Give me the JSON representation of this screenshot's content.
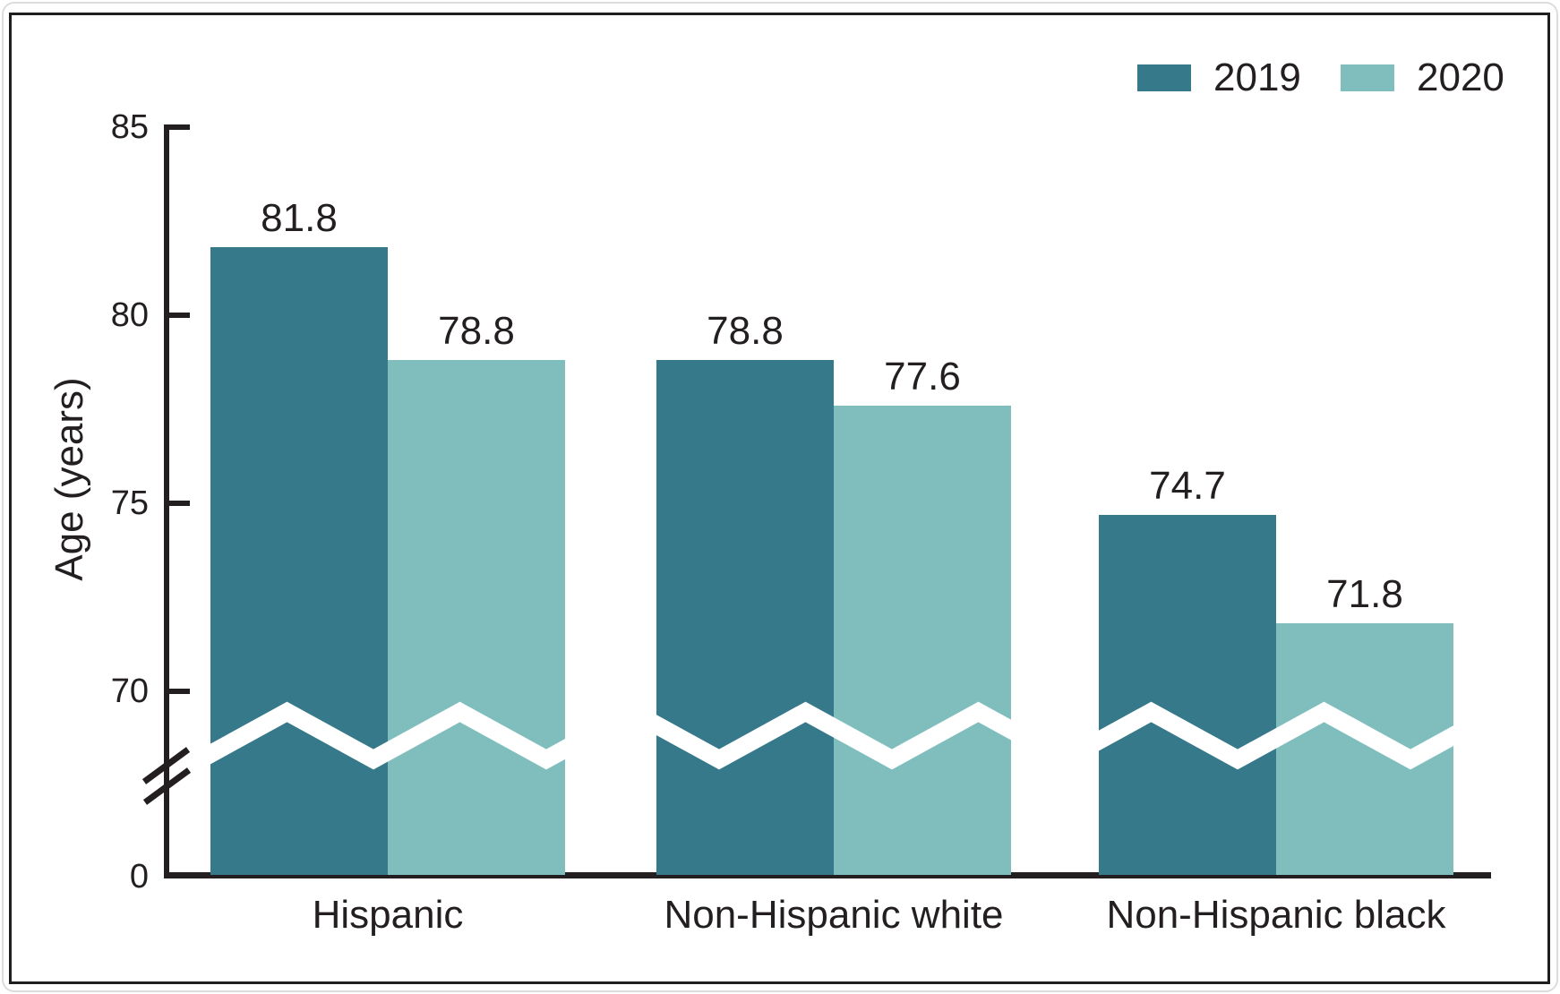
{
  "chart_data": {
    "type": "bar",
    "title": "",
    "categories": [
      "Hispanic",
      "Non-Hispanic white",
      "Non-Hispanic black"
    ],
    "series": [
      {
        "name": "2019",
        "color": "#36798a",
        "values": [
          81.8,
          78.8,
          74.7
        ]
      },
      {
        "name": "2020",
        "color": "#7fbebd",
        "values": [
          78.8,
          77.6,
          71.8
        ]
      }
    ],
    "value_labels": {
      "2019": [
        "81.8",
        "78.8",
        "74.7"
      ],
      "2020": [
        "78.8",
        "77.6",
        "71.8"
      ]
    },
    "xlabel": "",
    "ylabel": "Age (years)",
    "yticks": [
      {
        "label": "85",
        "value": 85,
        "mark": true
      },
      {
        "label": "80",
        "value": 80,
        "mark": true
      },
      {
        "label": "75",
        "value": 75,
        "mark": true
      },
      {
        "label": "70",
        "value": 70,
        "mark": true
      },
      {
        "label": "0",
        "value": 0,
        "mark": false
      }
    ],
    "axis_break": {
      "present": true,
      "between": [
        0,
        70
      ],
      "marker": "double-slash-on-axis, white zigzag across bars"
    },
    "ylim_shown": [
      70,
      85
    ],
    "grid": false,
    "legend_position": "top-right"
  },
  "legend": {
    "items": [
      {
        "label": "2019",
        "color": "#36798a"
      },
      {
        "label": "2020",
        "color": "#7fbebd"
      }
    ]
  },
  "colors": {
    "axis": "#231f20",
    "text": "#231f20",
    "background": "#ffffff",
    "break_zigzag": "#ffffff",
    "frame_border": "#1f1f1f"
  }
}
